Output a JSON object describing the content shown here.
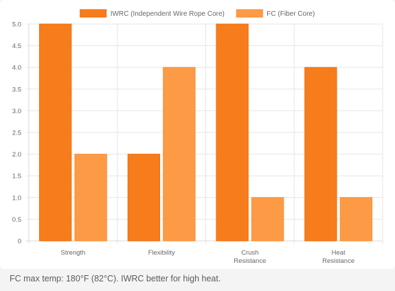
{
  "chart_data": {
    "type": "bar",
    "categories": [
      [
        "Strength"
      ],
      [
        "Flexibility"
      ],
      [
        "Crush",
        "Resistance"
      ],
      [
        "Heat",
        "Resistance"
      ]
    ],
    "series": [
      {
        "name": "IWRC (Independent Wire Rope Core)",
        "values": [
          5,
          2,
          5,
          4
        ],
        "color": "#f77c1c",
        "border_color": "#f26d0a"
      },
      {
        "name": "FC (Fiber Core)",
        "values": [
          2,
          4,
          1,
          1
        ],
        "color": "#fd9a46",
        "border_color": "#fb8e32"
      }
    ],
    "ylim": [
      0,
      5
    ],
    "yticks": [
      "0",
      "0.5",
      "1.0",
      "1.5",
      "2.0",
      "2.5",
      "3.0",
      "3.5",
      "4.0",
      "4.5",
      "5.0"
    ],
    "grid": true,
    "legend_position": "top-center"
  },
  "footnote": "FC max temp: 180°F (82°C). IWRC better for high heat."
}
